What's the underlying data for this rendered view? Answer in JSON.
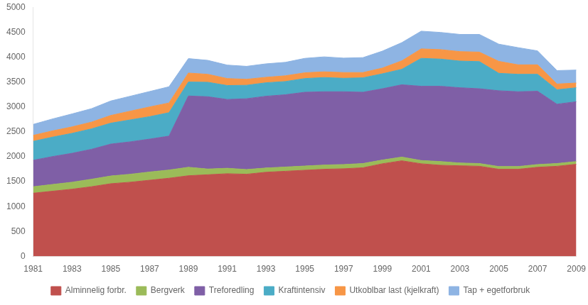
{
  "chart_data": {
    "type": "area",
    "stacked": true,
    "x": [
      1981,
      1982,
      1983,
      1984,
      1985,
      1986,
      1987,
      1988,
      1989,
      1990,
      1991,
      1992,
      1993,
      1994,
      1995,
      1996,
      1997,
      1998,
      1999,
      2000,
      2001,
      2002,
      2003,
      2004,
      2005,
      2006,
      2007,
      2008,
      2009
    ],
    "series": [
      {
        "name": "Alminnelig forbr.",
        "color": "#C0504D",
        "values": [
          1270,
          1310,
          1350,
          1400,
          1460,
          1490,
          1530,
          1570,
          1620,
          1640,
          1660,
          1650,
          1690,
          1710,
          1730,
          1750,
          1760,
          1780,
          1860,
          1920,
          1860,
          1830,
          1820,
          1810,
          1750,
          1750,
          1790,
          1810,
          1850
        ]
      },
      {
        "name": "Bergverk",
        "color": "#9BBB59",
        "values": [
          130,
          135,
          140,
          150,
          155,
          160,
          165,
          165,
          170,
          115,
          110,
          95,
          85,
          85,
          85,
          85,
          85,
          85,
          75,
          75,
          65,
          75,
          55,
          55,
          55,
          55,
          55,
          55,
          55
        ]
      },
      {
        "name": "Treforedling",
        "color": "#7F5FA6",
        "values": [
          530,
          560,
          580,
          600,
          640,
          650,
          660,
          680,
          1430,
          1450,
          1380,
          1420,
          1440,
          1450,
          1480,
          1470,
          1460,
          1430,
          1430,
          1450,
          1490,
          1510,
          1510,
          1500,
          1520,
          1500,
          1470,
          1190,
          1200
        ]
      },
      {
        "name": "Kraftintensiv",
        "color": "#4BACC6",
        "values": [
          380,
          390,
          400,
          410,
          420,
          440,
          450,
          470,
          280,
          290,
          280,
          270,
          270,
          265,
          275,
          285,
          270,
          290,
          300,
          310,
          560,
          545,
          535,
          545,
          350,
          350,
          340,
          290,
          280
        ]
      },
      {
        "name": "Utkoblbar last (kjelkraft)",
        "color": "#F79646",
        "values": [
          120,
          125,
          130,
          135,
          155,
          175,
          195,
          195,
          180,
          160,
          140,
          120,
          110,
          115,
          115,
          115,
          115,
          105,
          115,
          170,
          190,
          190,
          190,
          190,
          240,
          190,
          190,
          115,
          95
        ]
      },
      {
        "name": "Tap + egetforbruk",
        "color": "#8EB4E3",
        "values": [
          220,
          240,
          260,
          270,
          290,
          300,
          310,
          325,
          290,
          280,
          270,
          260,
          270,
          270,
          290,
          300,
          290,
          300,
          340,
          365,
          355,
          345,
          345,
          355,
          345,
          345,
          280,
          270,
          260
        ]
      }
    ],
    "xlim": [
      1981,
      2009
    ],
    "xticks": [
      1981,
      1983,
      1985,
      1987,
      1989,
      1991,
      1993,
      1995,
      1997,
      1999,
      2001,
      2003,
      2005,
      2007,
      2009
    ],
    "ylim": [
      0,
      5000
    ],
    "yticks": [
      0,
      500,
      1000,
      1500,
      2000,
      2500,
      3000,
      3500,
      4000,
      4500,
      5000
    ],
    "grid": false,
    "legend": "bottom"
  }
}
